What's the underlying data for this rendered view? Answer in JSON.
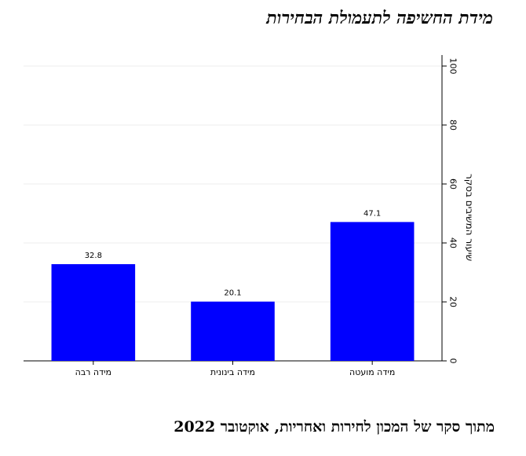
{
  "title": "מידת החשיפה לתעמולת הבחירות",
  "footer": "מתוך סקר של המכון לחירות ואחריות, אוקטובר 2022",
  "colors": {
    "bar": "#0000ff",
    "grid": "#eeeeee",
    "axis": "#000000"
  },
  "chart_data": {
    "type": "bar",
    "categories": [
      "מידה מועטה",
      "מידה בינונית",
      "מידה רבה"
    ],
    "values": [
      47.1,
      20.1,
      32.8
    ],
    "value_labels": [
      "47.1",
      "20.1",
      "32.8"
    ],
    "ylabel": "שיעור המשיבים בסקר",
    "ylim": [
      0,
      100
    ],
    "yticks": [
      "0",
      "20",
      "40",
      "60",
      "80",
      "100"
    ],
    "y_axis_side": "right",
    "category_order": "right-to-left",
    "grid": true
  }
}
